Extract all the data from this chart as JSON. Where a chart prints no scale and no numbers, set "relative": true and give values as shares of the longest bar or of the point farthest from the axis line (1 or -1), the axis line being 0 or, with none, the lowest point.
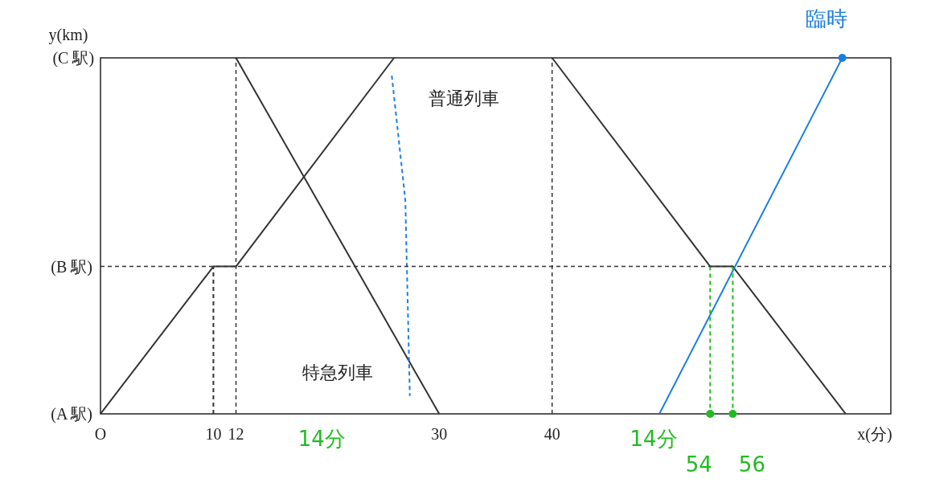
{
  "chart_data": {
    "type": "line",
    "xlabel": "x(分)",
    "ylabel": "y(km)",
    "xlim": [
      0,
      70
    ],
    "relative": true,
    "xticks": [
      {
        "value": 0,
        "label": "O"
      },
      10,
      12,
      30,
      40
    ],
    "line_style": "solid",
    "ref_lines": [
      {
        "axis": "y",
        "value": 0.414,
        "line_style": "dashed",
        "color": "#333333"
      },
      {
        "axis": "x",
        "value": 12,
        "line_style": "dashed",
        "color": "#333333"
      },
      {
        "axis": "x",
        "value": 40,
        "line_style": "dashed",
        "color": "#333333"
      }
    ],
    "series": [
      {
        "color": "#333333",
        "x": [
          0,
          10,
          12,
          26
        ],
        "values": [
          0,
          0.414,
          0.414,
          1
        ]
      },
      {
        "color": "#333333",
        "x": [
          12,
          30
        ],
        "values": [
          1,
          0
        ]
      },
      {
        "color": "#333333",
        "x": [
          40,
          54,
          56,
          66
        ],
        "values": [
          1,
          0.414,
          0.414,
          0
        ]
      },
      {
        "color": "#1a7fe0",
        "x": [
          49.5,
          65.7
        ],
        "values": [
          0,
          1
        ]
      },
      {
        "type": "scatter",
        "marker": "circle",
        "color": "#1a7fe0",
        "x": [
          65.7
        ],
        "values": [
          1
        ]
      },
      {
        "color": "#333333",
        "line_style": "dashed",
        "x": [
          10,
          10
        ],
        "values": [
          0,
          0.414
        ]
      },
      {
        "color": "#1a7fe0",
        "line_style": "dashed",
        "x": [
          25.8,
          27,
          27.4
        ],
        "values": [
          0.95,
          0.6,
          0.05
        ]
      },
      {
        "color": "#22bb22",
        "line_style": "dashed",
        "x": [
          54,
          54
        ],
        "values": [
          0.414,
          0
        ]
      },
      {
        "color": "#22bb22",
        "line_style": "dashed",
        "x": [
          56,
          56
        ],
        "values": [
          0.414,
          0
        ]
      },
      {
        "type": "scatter",
        "marker": "circle",
        "color": "#22bb22",
        "x": [
          54,
          56
        ],
        "values": [
          0,
          0
        ]
      }
    ],
    "annotations": [
      "普通列車",
      "特急列車",
      "14分",
      "14分",
      "(C 駅)",
      {
        "text": "臨時",
        "x": 65.7,
        "y": 1
      },
      {
        "text": "54",
        "x": 54,
        "y": 0
      },
      {
        "text": "56",
        "x": 56,
        "y": 0
      },
      {
        "text": "(A 駅)",
        "x": 0,
        "y": 0
      },
      {
        "text": "(B 駅)",
        "x": 0,
        "y": 0.414
      }
    ]
  }
}
